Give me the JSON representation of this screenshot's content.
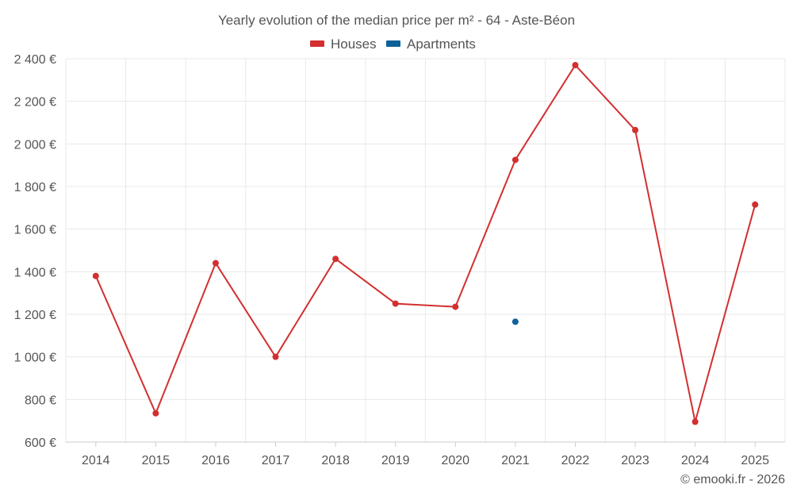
{
  "chart_data": {
    "type": "line",
    "title": "Yearly evolution of the median price per m² - 64 - Aste-Béon",
    "xlabel": "",
    "ylabel": "",
    "categories": [
      "2014",
      "2015",
      "2016",
      "2017",
      "2018",
      "2019",
      "2020",
      "2021",
      "2022",
      "2023",
      "2024",
      "2025"
    ],
    "ylim": [
      600,
      2400
    ],
    "yticks": [
      600,
      800,
      1000,
      1200,
      1400,
      1600,
      1800,
      2000,
      2200,
      2400
    ],
    "ytick_labels": [
      "600 €",
      "800 €",
      "1 000 €",
      "1 200 €",
      "1 400 €",
      "1 600 €",
      "1 800 €",
      "2 000 €",
      "2 200 €",
      "2 400 €"
    ],
    "grid": true,
    "legend_position": "top-center",
    "series": [
      {
        "name": "Houses",
        "color": "#d32f2f",
        "values": [
          1380,
          735,
          1440,
          1000,
          1460,
          1250,
          1235,
          1925,
          2370,
          2065,
          695,
          1715
        ]
      },
      {
        "name": "Apartments",
        "color": "#0d6199",
        "values": [
          null,
          null,
          null,
          null,
          null,
          null,
          null,
          1165,
          null,
          null,
          null,
          null
        ]
      }
    ]
  },
  "footer": {
    "credit": "© emooki.fr - 2026"
  }
}
